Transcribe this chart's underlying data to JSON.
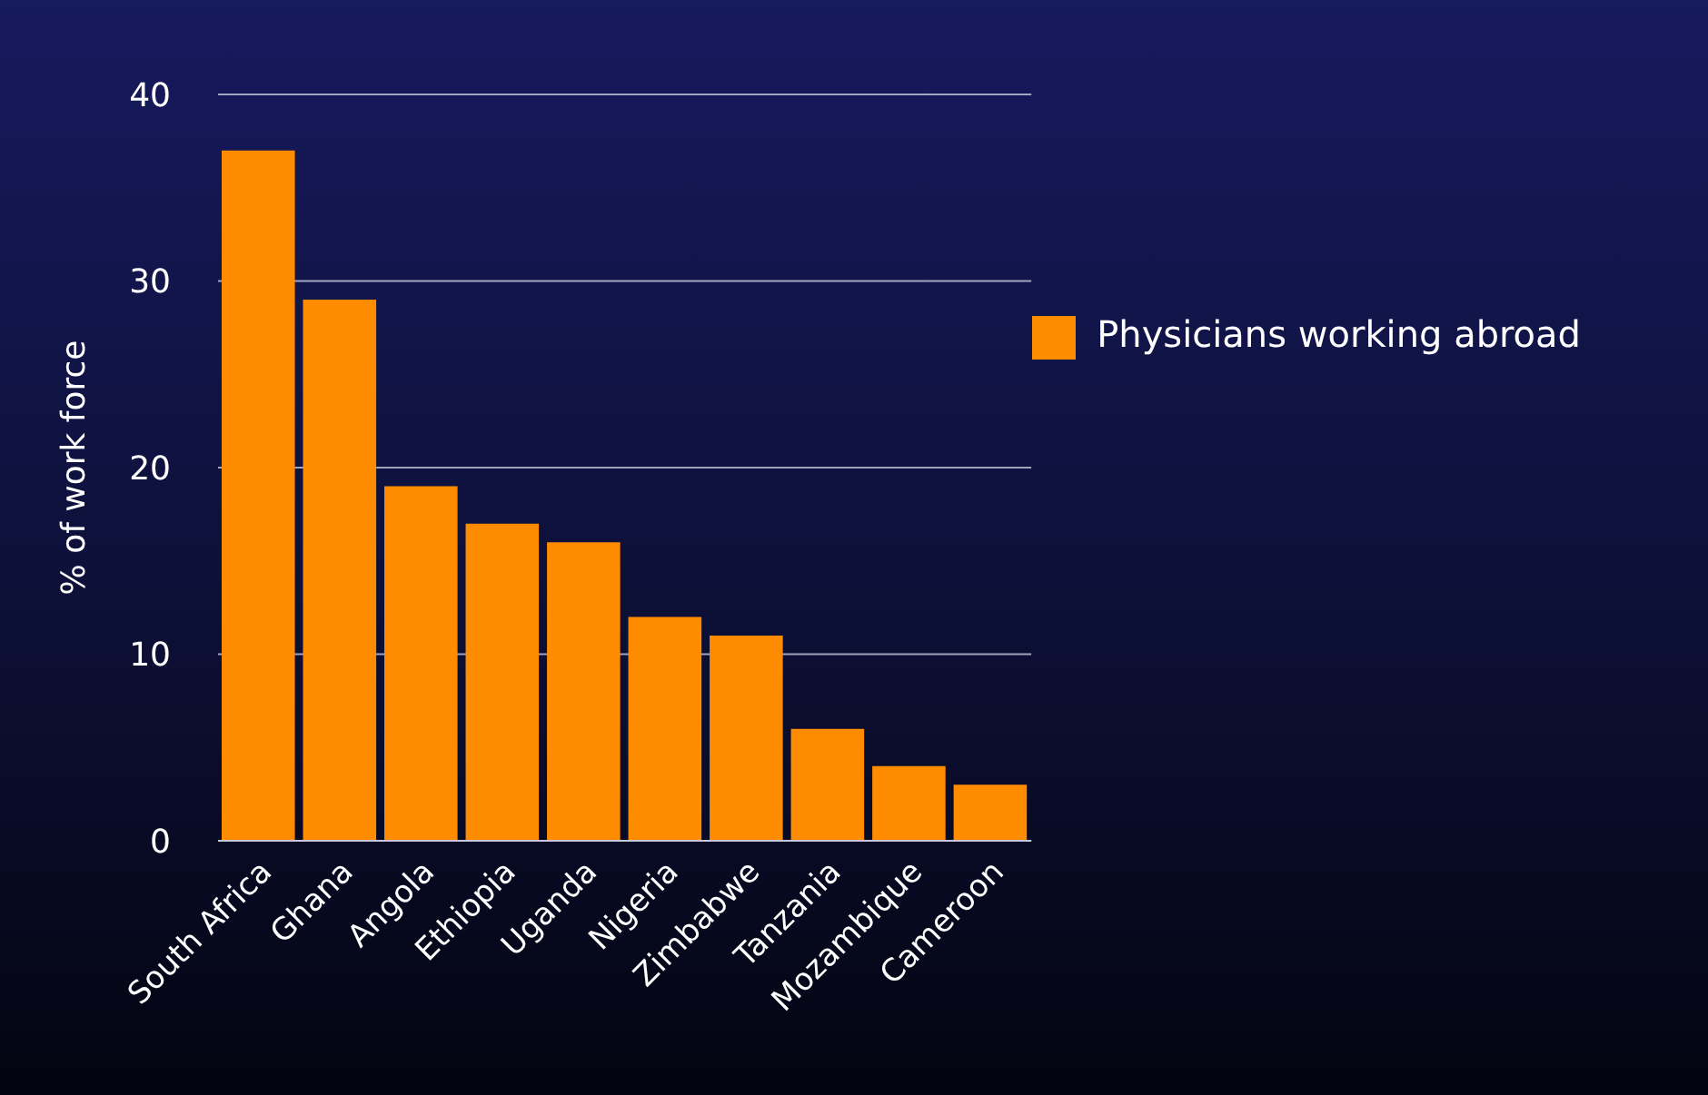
{
  "chart_data": {
    "type": "bar",
    "ylabel": "% of work force",
    "categories": [
      "South Africa",
      "Ghana",
      "Angola",
      "Ethiopia",
      "Uganda",
      "Nigeria",
      "Zimbabwe",
      "Tanzania",
      "Mozambique",
      "Cameroon"
    ],
    "series": [
      {
        "name": "Physicians working abroad",
        "color": "#ff8c00",
        "values": [
          37,
          29,
          19,
          17,
          16,
          12,
          11,
          6,
          4,
          3
        ]
      }
    ],
    "ylim": [
      0,
      40
    ],
    "yticks": [
      0,
      10,
      20,
      30,
      40
    ],
    "grid": "y",
    "legend": "top right"
  }
}
